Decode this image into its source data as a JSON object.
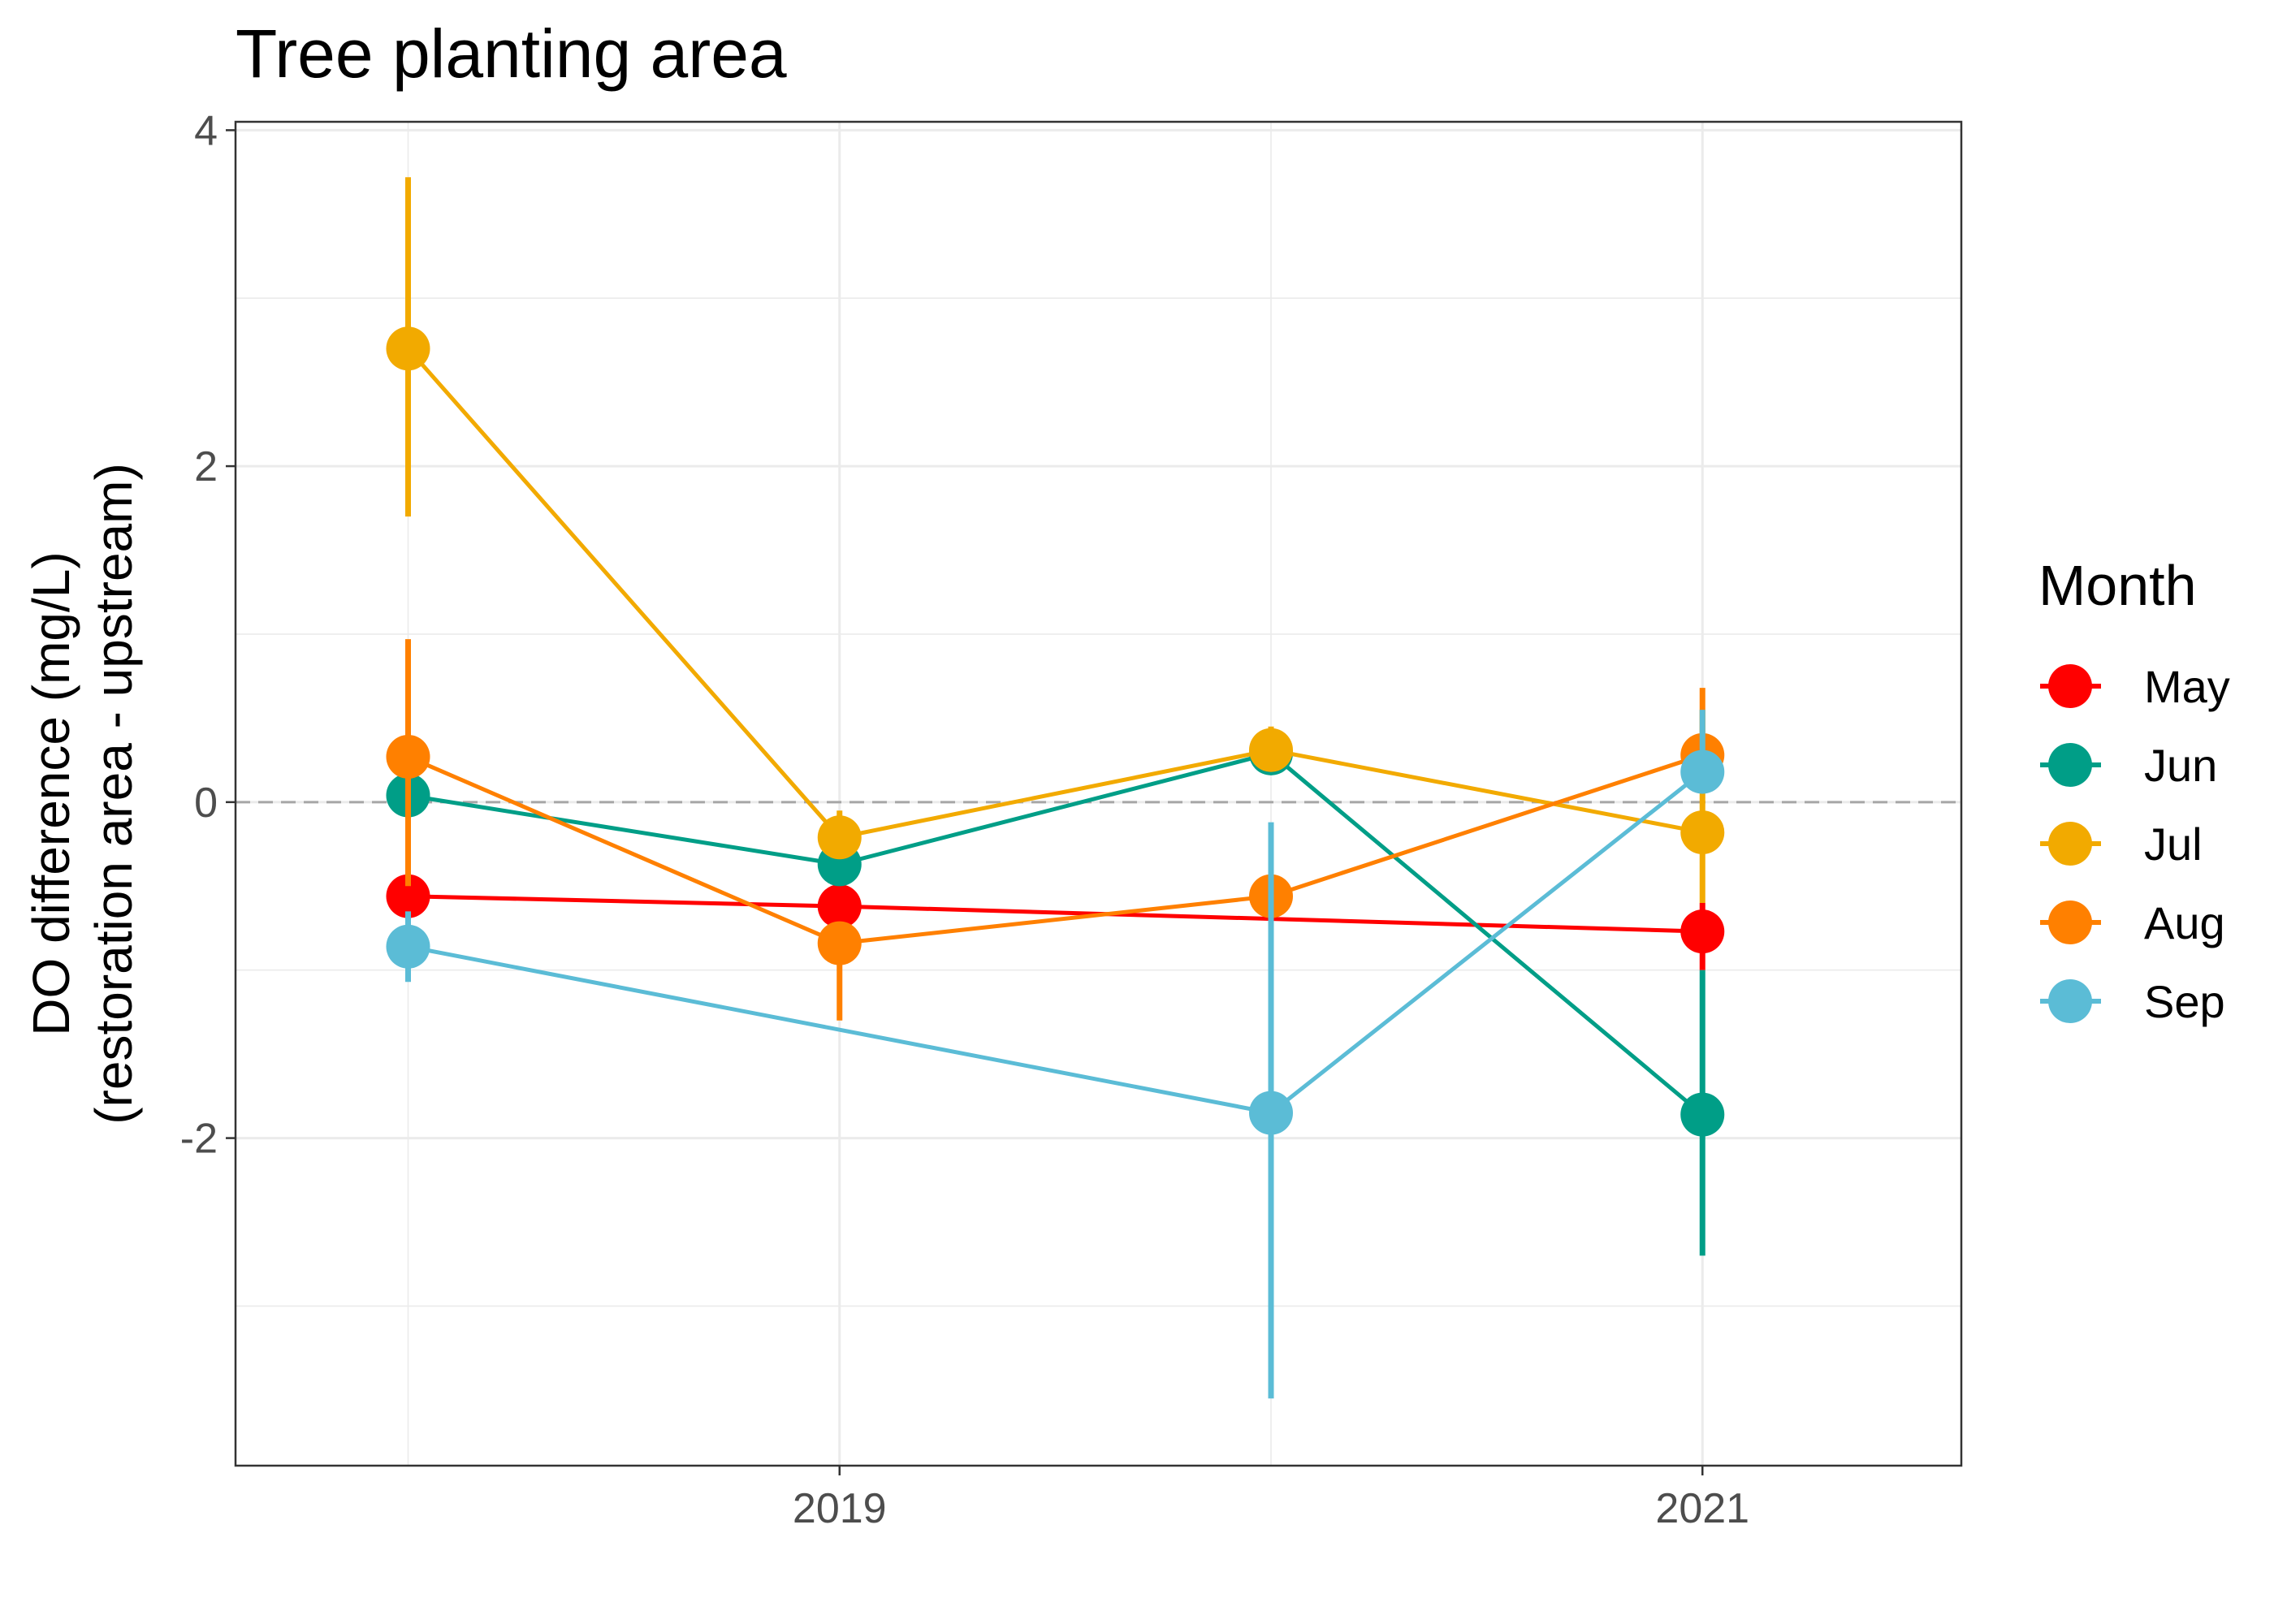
{
  "chart_data": {
    "type": "line",
    "title": "Tree planting area",
    "ylabel_line1": "DO difference (mg/L)",
    "ylabel_line2": "(restoration area - upstream)",
    "xlabel": "",
    "x_positions": [
      2018,
      2019,
      2020,
      2021
    ],
    "x_ticks": [
      2019,
      2021
    ],
    "xlim": [
      2017.6,
      2021.6
    ],
    "y_ticks": [
      -2,
      0,
      2,
      4
    ],
    "ylim": [
      -3.95,
      4.05
    ],
    "reference_line": 0,
    "grid": true,
    "legend": {
      "title": "Month",
      "placement": "right"
    },
    "series": [
      {
        "name": "May",
        "color": "#FF0000",
        "x": [
          2018,
          2019,
          2021
        ],
        "values": [
          -0.56,
          -0.62,
          -0.77
        ],
        "lower": [
          -0.56,
          -0.62,
          -1.0
        ],
        "upper": [
          -0.56,
          -0.62,
          -0.6
        ]
      },
      {
        "name": "Jun",
        "color": "#009E87",
        "x": [
          2018,
          2019,
          2020,
          2021
        ],
        "values": [
          0.04,
          -0.37,
          0.29,
          -1.86
        ],
        "lower": [
          0.04,
          -0.37,
          0.29,
          -2.7
        ],
        "upper": [
          0.04,
          -0.37,
          0.29,
          -1.0
        ]
      },
      {
        "name": "Jul",
        "color": "#F2AA00",
        "x": [
          2018,
          2019,
          2020,
          2021
        ],
        "values": [
          2.7,
          -0.21,
          0.31,
          -0.18
        ],
        "lower": [
          1.7,
          -0.21,
          0.31,
          -0.6
        ],
        "upper": [
          3.72,
          -0.05,
          0.45,
          0.55
        ]
      },
      {
        "name": "Aug",
        "color": "#FF8000",
        "x": [
          2018,
          2019,
          2020,
          2021
        ],
        "values": [
          0.27,
          -0.84,
          -0.56,
          0.28
        ],
        "lower": [
          -0.5,
          -1.3,
          -0.56,
          0.28
        ],
        "upper": [
          0.97,
          -0.84,
          -0.56,
          0.68
        ]
      },
      {
        "name": "Sep",
        "color": "#5BBCD6",
        "x": [
          2018,
          2020,
          2021
        ],
        "values": [
          -0.86,
          -1.85,
          0.18
        ],
        "lower": [
          -1.07,
          -3.55,
          0.18
        ],
        "upper": [
          -0.65,
          -0.12,
          0.55
        ]
      }
    ]
  }
}
